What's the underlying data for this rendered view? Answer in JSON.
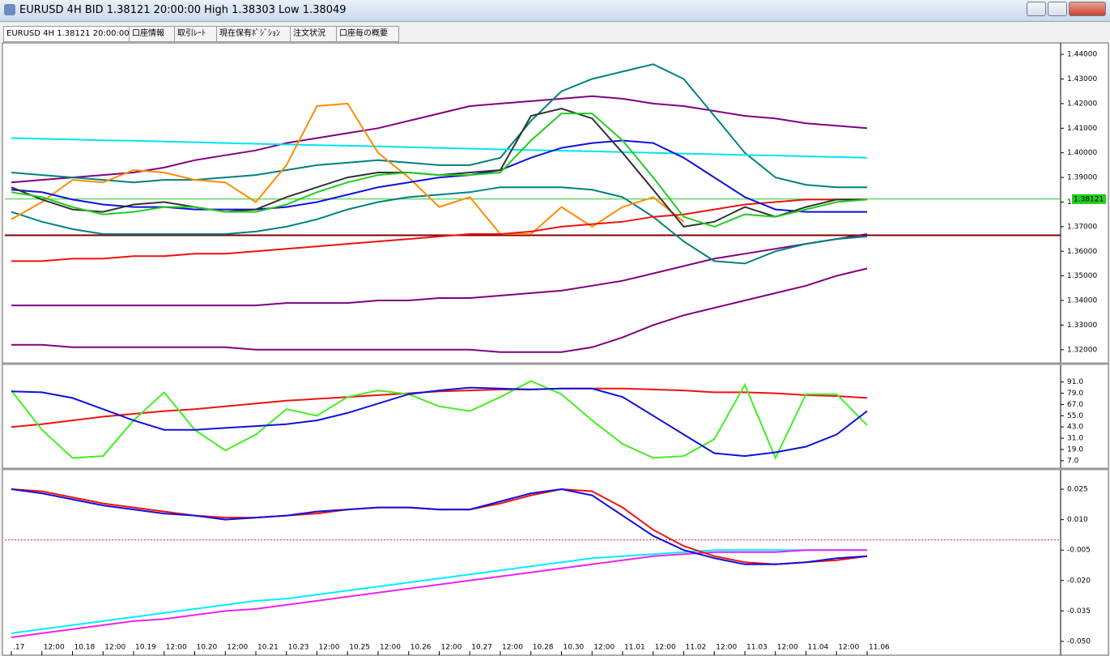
{
  "window": {
    "title": "EURUSD 4H BID 1.38121 20:00:00 High 1.38303 Low 1.38049",
    "tabs": [
      "EURUSD 4H 1.38121 20:00:00",
      "口座情報",
      "取引ﾚｰﾄ",
      "現在保有ﾎﾟｼﾞｼｮﾝ",
      "注文状況",
      "口座毎の概要"
    ]
  },
  "chart_data": [
    {
      "type": "line",
      "last_price": 1.38121,
      "support": 1.3665,
      "ylim": [
        1.315,
        1.444
      ],
      "yticks": [
        {
          "value": 1.32,
          "label": "1.32000"
        },
        {
          "value": 1.33,
          "label": "1.33000"
        },
        {
          "value": 1.34,
          "label": "1.34000"
        },
        {
          "value": 1.35,
          "label": "1.35000"
        },
        {
          "value": 1.36,
          "label": "1.36000"
        },
        {
          "value": 1.37,
          "label": "1.37000"
        },
        {
          "value": 1.38,
          "label": "1.38000"
        },
        {
          "value": 1.39,
          "label": "1.39000"
        },
        {
          "value": 1.4,
          "label": "1.40000"
        },
        {
          "value": 1.41,
          "label": "1.41000"
        },
        {
          "value": 1.42,
          "label": "1.42000"
        },
        {
          "value": 1.43,
          "label": "1.43000"
        },
        {
          "value": 1.44,
          "label": "1.44000"
        }
      ],
      "series": [
        {
          "color": "#800080",
          "values": [
            1.388,
            1.389,
            1.39,
            1.391,
            1.392,
            1.394,
            1.397,
            1.399,
            1.401,
            1.404,
            1.406,
            1.408,
            1.41,
            1.413,
            1.416,
            1.419,
            1.42,
            1.421,
            1.422,
            1.423,
            1.422,
            1.42,
            1.419,
            1.417,
            1.415,
            1.414,
            1.412,
            1.411,
            1.41
          ]
        },
        {
          "color": "#800080",
          "values": [
            1.338,
            1.338,
            1.338,
            1.338,
            1.338,
            1.338,
            1.338,
            1.338,
            1.338,
            1.339,
            1.339,
            1.339,
            1.34,
            1.34,
            1.341,
            1.341,
            1.342,
            1.343,
            1.344,
            1.346,
            1.348,
            1.351,
            1.354,
            1.357,
            1.359,
            1.361,
            1.363,
            1.365,
            1.367
          ]
        },
        {
          "color": "#800080",
          "values": [
            1.322,
            1.322,
            1.321,
            1.321,
            1.321,
            1.321,
            1.321,
            1.321,
            1.32,
            1.32,
            1.32,
            1.32,
            1.32,
            1.32,
            1.32,
            1.32,
            1.319,
            1.319,
            1.319,
            1.321,
            1.325,
            1.33,
            1.334,
            1.337,
            1.34,
            1.343,
            1.346,
            1.35,
            1.353
          ]
        },
        {
          "color": "#008080",
          "values": [
            1.392,
            1.391,
            1.39,
            1.389,
            1.388,
            1.389,
            1.389,
            1.39,
            1.391,
            1.393,
            1.395,
            1.396,
            1.397,
            1.396,
            1.395,
            1.395,
            1.398,
            1.413,
            1.425,
            1.43,
            1.433,
            1.436,
            1.43,
            1.415,
            1.4,
            1.39,
            1.387,
            1.386,
            1.386
          ]
        },
        {
          "color": "#008080",
          "values": [
            1.376,
            1.372,
            1.369,
            1.367,
            1.367,
            1.367,
            1.367,
            1.367,
            1.368,
            1.37,
            1.373,
            1.377,
            1.38,
            1.382,
            1.383,
            1.384,
            1.386,
            1.386,
            1.386,
            1.385,
            1.382,
            1.374,
            1.364,
            1.356,
            1.355,
            1.36,
            1.363,
            1.365,
            1.366
          ]
        },
        {
          "color": "#00e5ee",
          "values": [
            1.406,
            1.4057,
            1.4054,
            1.4051,
            1.4049,
            1.4046,
            1.4043,
            1.404,
            1.4037,
            1.4034,
            1.4031,
            1.4029,
            1.4026,
            1.4023,
            1.402,
            1.4017,
            1.4014,
            1.4011,
            1.4009,
            1.4006,
            1.4003,
            1.4,
            1.3997,
            1.3994,
            1.3991,
            1.3989,
            1.3986,
            1.3983,
            1.398
          ]
        },
        {
          "color": "#ff8c00",
          "values": [
            1.373,
            1.38,
            1.389,
            1.388,
            1.393,
            1.392,
            1.389,
            1.388,
            1.38,
            1.395,
            1.419,
            1.42,
            1.4,
            1.39,
            1.378,
            1.382,
            1.367,
            1.367,
            1.378,
            1.37,
            1.378,
            1.382,
            1.372,
            null,
            null,
            null,
            null,
            null,
            null
          ]
        },
        {
          "color": "#ee1111",
          "values": [
            1.356,
            1.356,
            1.357,
            1.357,
            1.358,
            1.358,
            1.359,
            1.359,
            1.36,
            1.361,
            1.362,
            1.363,
            1.364,
            1.365,
            1.366,
            1.367,
            1.367,
            1.368,
            1.37,
            1.371,
            1.372,
            1.374,
            1.375,
            1.377,
            1.379,
            1.38,
            1.381,
            1.381,
            1.381
          ]
        },
        {
          "color": "#1010dd",
          "values": [
            1.385,
            1.384,
            1.381,
            1.379,
            1.378,
            1.378,
            1.377,
            1.377,
            1.377,
            1.378,
            1.38,
            1.383,
            1.386,
            1.388,
            1.39,
            1.391,
            1.393,
            1.398,
            1.402,
            1.404,
            1.405,
            1.404,
            1.398,
            1.39,
            1.382,
            1.377,
            1.376,
            1.376,
            1.376
          ]
        },
        {
          "color": "#333333",
          "values": [
            1.386,
            1.381,
            1.377,
            1.376,
            1.379,
            1.38,
            1.378,
            1.376,
            1.377,
            1.382,
            1.386,
            1.39,
            1.392,
            1.392,
            1.391,
            1.392,
            1.393,
            1.415,
            1.418,
            1.414,
            1.4,
            1.385,
            1.37,
            1.372,
            1.378,
            1.374,
            1.378,
            1.381,
            1.381
          ]
        },
        {
          "color": "#22cc22",
          "values": [
            1.384,
            1.382,
            1.378,
            1.375,
            1.376,
            1.378,
            1.378,
            1.376,
            1.376,
            1.379,
            1.384,
            1.388,
            1.391,
            1.392,
            1.391,
            1.391,
            1.392,
            1.405,
            1.416,
            1.416,
            1.405,
            1.39,
            1.374,
            1.37,
            1.375,
            1.374,
            1.377,
            1.38,
            1.381
          ]
        }
      ]
    },
    {
      "type": "line",
      "ylim": [
        0,
        108
      ],
      "yticks": [
        {
          "value": 7,
          "label": "7.0"
        },
        {
          "value": 19,
          "label": "19.0"
        },
        {
          "value": 31,
          "label": "31.0"
        },
        {
          "value": 43,
          "label": "43.0"
        },
        {
          "value": 55,
          "label": "55.0"
        },
        {
          "value": 67,
          "label": "67.0"
        },
        {
          "value": 79,
          "label": "79.0"
        },
        {
          "value": 91,
          "label": "91.0"
        }
      ],
      "series": [
        {
          "color": "#ee1111",
          "values": [
            43,
            46,
            50,
            54,
            57,
            60,
            62,
            65,
            68,
            71,
            73,
            75,
            77,
            79,
            81,
            82,
            83,
            83,
            84,
            84,
            84,
            83,
            82,
            80,
            80,
            79,
            77,
            76,
            74
          ]
        },
        {
          "color": "#44ee22",
          "values": [
            82,
            40,
            10,
            12,
            50,
            80,
            40,
            18,
            35,
            62,
            55,
            75,
            82,
            78,
            65,
            60,
            75,
            92,
            78,
            50,
            25,
            10,
            12,
            30,
            88,
            10,
            78,
            78,
            45
          ]
        },
        {
          "color": "#1010dd",
          "values": [
            81,
            80,
            74,
            62,
            50,
            40,
            40,
            42,
            44,
            46,
            50,
            58,
            68,
            78,
            82,
            85,
            84,
            83,
            84,
            84,
            75,
            55,
            35,
            15,
            12,
            16,
            22,
            35,
            60
          ]
        }
      ]
    },
    {
      "type": "line",
      "ylim": [
        -0.0564,
        0.0338
      ],
      "yticks": [
        {
          "value": -0.05,
          "label": "-0.050"
        },
        -0.035,
        {
          "value": -0.02,
          "label": "-0.020"
        },
        -0.005,
        {
          "value": 0.01,
          "label": "0.010"
        },
        0.025
      ],
      "categories": [
        ".17",
        "12:00",
        "10.18",
        "12:00",
        "10.19",
        "12:00",
        "10.20",
        "12:00",
        "10.21",
        "10.23",
        "12:00",
        "10.25",
        "12:00",
        "10.26",
        "12:00",
        "10.27",
        "12:00",
        "10.28",
        "10.30",
        "12:00",
        "11.01",
        "12:00",
        "11.02",
        "12:00",
        "11.03",
        "12:00",
        "11.04",
        "12:00",
        "11.06"
      ],
      "series": [
        {
          "color": "#00eeff",
          "values": [
            -0.046,
            -0.044,
            -0.042,
            -0.04,
            -0.038,
            -0.036,
            -0.034,
            -0.032,
            -0.03,
            -0.029,
            -0.027,
            -0.025,
            -0.023,
            -0.021,
            -0.019,
            -0.017,
            -0.015,
            -0.013,
            -0.011,
            -0.009,
            -0.008,
            -0.007,
            -0.006,
            -0.005,
            -0.005,
            -0.005,
            -0.005,
            -0.005,
            -0.005
          ]
        },
        {
          "color": "#ee22ee",
          "values": [
            -0.048,
            -0.046,
            -0.044,
            -0.042,
            -0.04,
            -0.039,
            -0.037,
            -0.035,
            -0.034,
            -0.032,
            -0.03,
            -0.028,
            -0.026,
            -0.024,
            -0.022,
            -0.02,
            -0.018,
            -0.016,
            -0.014,
            -0.012,
            -0.01,
            -0.008,
            -0.007,
            -0.006,
            -0.006,
            -0.006,
            -0.005,
            -0.005,
            -0.005
          ]
        },
        {
          "color": "#ee1111",
          "values": [
            0.025,
            0.024,
            0.021,
            0.018,
            0.016,
            0.014,
            0.012,
            0.011,
            0.011,
            0.012,
            0.013,
            0.015,
            0.016,
            0.016,
            0.015,
            0.015,
            0.018,
            0.022,
            0.025,
            0.024,
            0.016,
            0.005,
            -0.003,
            -0.008,
            -0.011,
            -0.012,
            -0.011,
            -0.01,
            -0.008
          ]
        },
        {
          "color": "#1010dd",
          "values": [
            0.025,
            0.023,
            0.02,
            0.017,
            0.015,
            0.013,
            0.012,
            0.01,
            0.011,
            0.012,
            0.014,
            0.015,
            0.016,
            0.016,
            0.015,
            0.015,
            0.019,
            0.023,
            0.025,
            0.022,
            0.012,
            0.002,
            -0.005,
            -0.009,
            -0.012,
            -0.012,
            -0.011,
            -0.009,
            -0.008
          ]
        }
      ]
    }
  ]
}
